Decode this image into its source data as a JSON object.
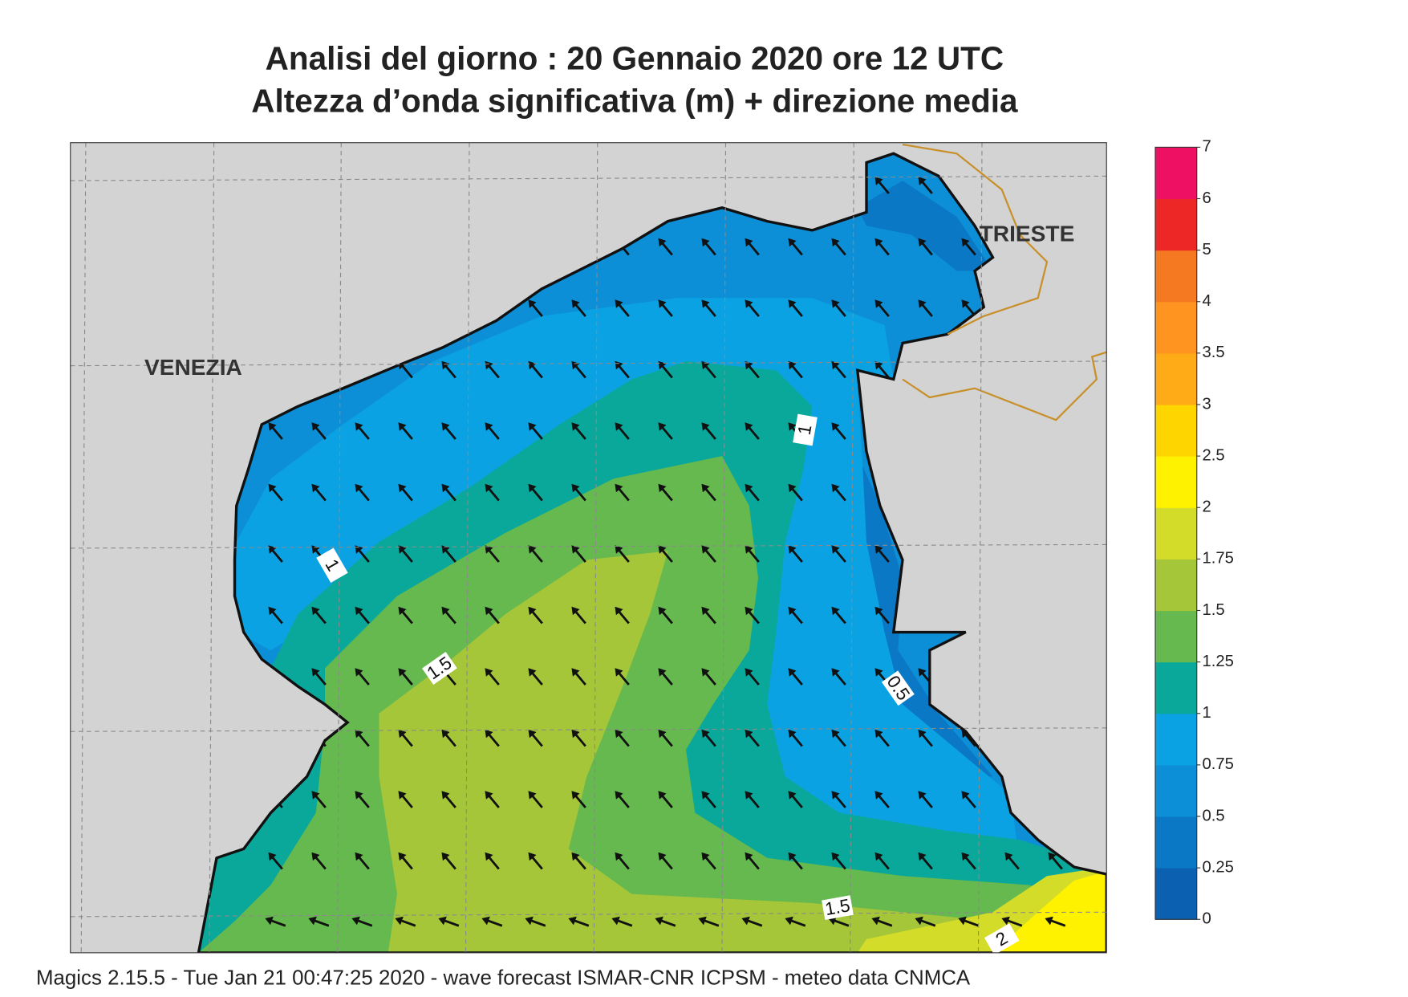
{
  "header": {
    "title": "Analisi del giorno :  20  Gennaio  2020   ore 12 UTC",
    "subtitle": "Altezza d’onda significativa (m) + direzione media"
  },
  "map": {
    "cities": [
      "VENEZIA",
      "TRIESTE"
    ],
    "contour_labels": [
      "1",
      "1",
      "1.5",
      "0.5",
      "1.5",
      "2"
    ]
  },
  "colorbar": {
    "levels": [
      0,
      0.25,
      0.5,
      0.75,
      1,
      1.25,
      1.5,
      1.75,
      2,
      2.5,
      3,
      3.5,
      4,
      5,
      6,
      7
    ],
    "colors": [
      "#0b60b2",
      "#0a78c4",
      "#0c8fd6",
      "#0aa2e2",
      "#0aa89a",
      "#66b94e",
      "#a6c63a",
      "#d4dc2a",
      "#fff200",
      "#ffd500",
      "#ffaa17",
      "#ff9421",
      "#f47920",
      "#ed2626",
      "#ee1163"
    ]
  },
  "footer": "Magics 2.15.5 - Tue Jan 21 00:47:25 2020 - wave forecast  ISMAR-CNR  ICPSM - meteo data   CNMCA"
}
